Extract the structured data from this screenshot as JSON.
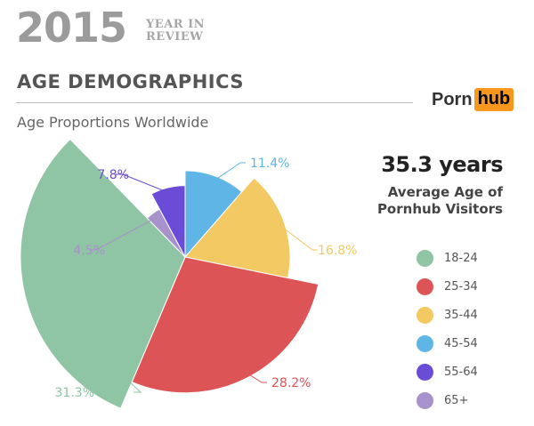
{
  "header": {
    "year": "2015",
    "badge_line1": "YEAR IN",
    "badge_line2": "REVIEW",
    "title": "AGE DEMOGRAPHICS",
    "subtitle": "Age Proportions Worldwide",
    "logo_left": "Porn",
    "logo_right": "hub"
  },
  "stat": {
    "value": "35.3 years",
    "label_line1": "Average Age of",
    "label_line2": "Pornhub Visitors"
  },
  "colors": {
    "18-24": "#8fc4a4",
    "25-34": "#dc5456",
    "35-44": "#f2c962",
    "45-54": "#5fb6e6",
    "55-64": "#6a4cd6",
    "65+": "#a892cb",
    "logo_accent": "#f7971d"
  },
  "chart_data": {
    "type": "pie",
    "variant": "rose (radius proportional to share)",
    "categories": [
      "18-24",
      "25-34",
      "35-44",
      "45-54",
      "55-64",
      "65+"
    ],
    "values": [
      31.3,
      28.2,
      16.8,
      11.4,
      7.8,
      4.5
    ],
    "data_labels": [
      "31.3%",
      "28.2%",
      "16.8%",
      "11.4%",
      "7.8%",
      "4.5%"
    ],
    "legend": [
      "18-24",
      "25-34",
      "35-44",
      "45-54",
      "55-64",
      "65+"
    ],
    "legend_position": "right"
  }
}
